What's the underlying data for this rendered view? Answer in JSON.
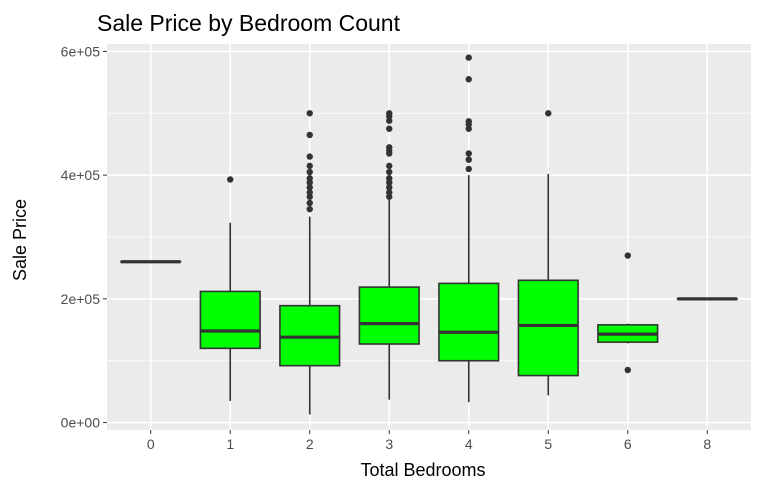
{
  "chart_data": {
    "type": "box",
    "title": "Sale Price by Bedroom Count",
    "xlabel": "Total Bedrooms",
    "ylabel": "Sale Price",
    "ylim": [
      -12000,
      612000
    ],
    "yticks": [
      0,
      200000,
      400000,
      600000
    ],
    "ytick_labels": [
      "0e+00",
      "2e+05",
      "4e+05",
      "6e+05"
    ],
    "grid": true,
    "colors": {
      "panel_bg": "#ebebeb",
      "grid": "#ffffff",
      "box_fill": "#00ff00",
      "box_stroke": "#333333",
      "outlier": "#333333"
    },
    "categories": [
      "0",
      "1",
      "2",
      "3",
      "4",
      "5",
      "6",
      "8"
    ],
    "boxes": [
      {
        "category": "0",
        "min": 260000,
        "q1": 260000,
        "median": 260000,
        "q3": 260000,
        "max": 260000,
        "outliers": []
      },
      {
        "category": "1",
        "min": 35000,
        "q1": 120000,
        "median": 148000,
        "q3": 212000,
        "max": 323000,
        "outliers": [
          393000
        ]
      },
      {
        "category": "2",
        "min": 13000,
        "q1": 92000,
        "median": 138000,
        "q3": 189000,
        "max": 333000,
        "outliers": [
          345000,
          355000,
          365000,
          372000,
          380000,
          388000,
          395000,
          405000,
          415000,
          430000,
          465000,
          500000
        ]
      },
      {
        "category": "3",
        "min": 37000,
        "q1": 127000,
        "median": 160000,
        "q3": 219000,
        "max": 360000,
        "outliers": [
          365000,
          372000,
          380000,
          388000,
          395000,
          405000,
          415000,
          435000,
          440000,
          445000,
          475000,
          488000,
          495000,
          500000
        ]
      },
      {
        "category": "4",
        "min": 33000,
        "q1": 100000,
        "median": 146000,
        "q3": 225000,
        "max": 400000,
        "outliers": [
          410000,
          425000,
          435000,
          475000,
          482000,
          487000,
          555000,
          590000
        ]
      },
      {
        "category": "5",
        "min": 44000,
        "q1": 76000,
        "median": 157000,
        "q3": 230000,
        "max": 402000,
        "outliers": [
          500000
        ]
      },
      {
        "category": "6",
        "min": 128000,
        "q1": 130000,
        "median": 143000,
        "q3": 158000,
        "max": 160000,
        "outliers": [
          85000,
          270000
        ]
      },
      {
        "category": "8",
        "min": 200000,
        "q1": 200000,
        "median": 200000,
        "q3": 200000,
        "max": 200000,
        "outliers": []
      }
    ]
  }
}
